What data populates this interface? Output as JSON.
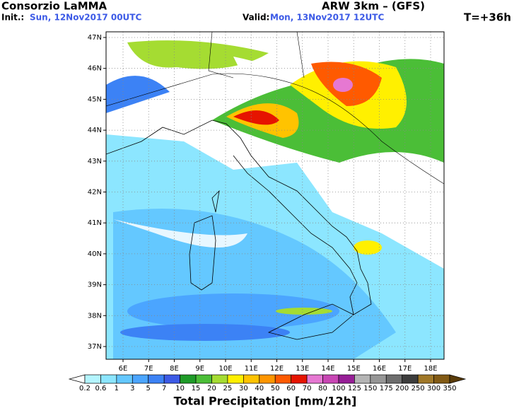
{
  "header": {
    "title": "Consorzio LaMMA",
    "model": "ARW 3km – (GFS)",
    "init_label": "Init.:",
    "init": "Sun, 12Nov2017 00UTC",
    "valid_label": "Valid:",
    "valid": "Mon, 13Nov2017 12UTC",
    "lead": "T=+36h"
  },
  "map": {
    "lat_labels": [
      "47N",
      "46N",
      "45N",
      "44N",
      "43N",
      "42N",
      "41N",
      "40N",
      "39N",
      "38N",
      "37N"
    ],
    "lon_labels": [
      "6E",
      "7E",
      "8E",
      "9E",
      "10E",
      "11E",
      "12E",
      "13E",
      "14E",
      "15E",
      "16E",
      "17E",
      "18E"
    ]
  },
  "colorbar": {
    "labels": [
      "0.2",
      "0.6",
      "1",
      "3",
      "5",
      "7",
      "10",
      "15",
      "20",
      "25",
      "30",
      "40",
      "50",
      "60",
      "70",
      "80",
      "100",
      "125",
      "150",
      "175",
      "200",
      "250",
      "300",
      "350"
    ],
    "colors": [
      "#ffffff",
      "#b4f5ff",
      "#8ce6ff",
      "#64c8ff",
      "#4ba5ff",
      "#3c82f5",
      "#3c5ae6",
      "#1e9b28",
      "#4bbe37",
      "#a5dc32",
      "#fff000",
      "#ffc300",
      "#ff9600",
      "#ff5a00",
      "#e61400",
      "#e678d2",
      "#c846b4",
      "#961e96",
      "#b4b4b4",
      "#969696",
      "#6e6e6e",
      "#3c3c3c",
      "#a07828",
      "#825a14",
      "#5a3c0a"
    ],
    "title": "Total Precipitation [mm/12h]"
  }
}
